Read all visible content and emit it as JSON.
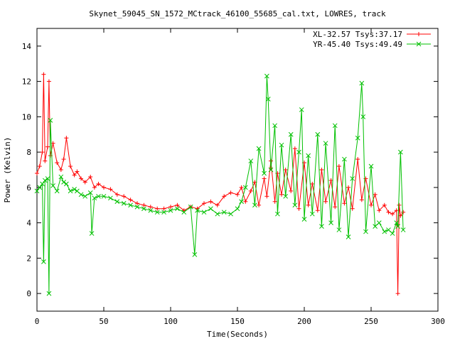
{
  "chart_data": {
    "type": "line",
    "title": "Skynet_59045_SN_1572_MCtrack_46100_55685_cal.txt, LOWRES, track",
    "xlabel": "Time(Seconds)",
    "ylabel": "Power (Kelvin)",
    "xlim": [
      0,
      300
    ],
    "ylim": [
      -1,
      15
    ],
    "xticks": [
      0,
      50,
      100,
      150,
      200,
      250,
      300
    ],
    "yticks": [
      0,
      2,
      4,
      6,
      8,
      10,
      12,
      14
    ],
    "grid": false,
    "legend_position": "top-right",
    "series": [
      {
        "name": "XL-32.57 Tsys:37.17",
        "color": "#ff0000",
        "marker": "plus",
        "x": [
          0,
          2,
          4,
          5,
          6,
          8,
          9,
          10,
          12,
          15,
          18,
          20,
          22,
          25,
          28,
          30,
          33,
          36,
          40,
          43,
          46,
          50,
          55,
          60,
          65,
          70,
          75,
          80,
          85,
          90,
          95,
          100,
          105,
          110,
          115,
          120,
          125,
          130,
          135,
          140,
          145,
          150,
          153,
          156,
          160,
          163,
          166,
          170,
          172,
          175,
          178,
          180,
          183,
          186,
          190,
          193,
          196,
          200,
          203,
          206,
          210,
          213,
          216,
          220,
          223,
          226,
          230,
          233,
          236,
          240,
          243,
          246,
          250,
          253,
          256,
          260,
          263,
          266,
          269,
          270,
          271,
          272,
          274
        ],
        "y": [
          6.8,
          7.2,
          8.0,
          12.4,
          7.5,
          8.3,
          12.0,
          7.8,
          8.5,
          7.4,
          7.0,
          7.6,
          8.8,
          7.2,
          6.7,
          6.9,
          6.5,
          6.3,
          6.6,
          6.0,
          6.2,
          6.0,
          5.9,
          5.6,
          5.5,
          5.3,
          5.1,
          5.0,
          4.9,
          4.8,
          4.8,
          4.9,
          5.0,
          4.7,
          4.9,
          4.8,
          5.1,
          5.2,
          5.0,
          5.5,
          5.7,
          5.6,
          6.0,
          5.2,
          5.8,
          6.3,
          5.0,
          6.5,
          5.5,
          7.5,
          5.2,
          6.8,
          5.6,
          7.0,
          5.8,
          8.2,
          4.8,
          7.4,
          5.0,
          6.2,
          4.7,
          7.0,
          5.2,
          6.4,
          4.9,
          7.2,
          5.1,
          6.0,
          4.8,
          7.6,
          5.3,
          6.5,
          5.0,
          5.6,
          4.7,
          5.0,
          4.6,
          4.5,
          4.7,
          0.0,
          5.0,
          4.4,
          4.6
        ]
      },
      {
        "name": "YR-45.40 Tsys:49.49",
        "color": "#00c000",
        "marker": "cross",
        "x": [
          0,
          2,
          4,
          5,
          6,
          8,
          9,
          10,
          12,
          15,
          18,
          20,
          22,
          25,
          28,
          30,
          33,
          36,
          40,
          41,
          43,
          46,
          50,
          55,
          60,
          65,
          70,
          75,
          80,
          85,
          90,
          95,
          100,
          105,
          110,
          115,
          118,
          120,
          125,
          130,
          135,
          140,
          145,
          150,
          153,
          156,
          160,
          163,
          166,
          170,
          172,
          173,
          175,
          178,
          180,
          183,
          186,
          190,
          193,
          196,
          198,
          200,
          203,
          206,
          210,
          213,
          216,
          220,
          223,
          226,
          230,
          233,
          236,
          240,
          243,
          244,
          246,
          250,
          253,
          256,
          260,
          263,
          266,
          269,
          270,
          272,
          274
        ],
        "y": [
          5.8,
          6.0,
          6.2,
          1.8,
          6.4,
          6.5,
          0.0,
          9.8,
          6.1,
          5.8,
          6.6,
          6.3,
          6.2,
          5.8,
          5.9,
          5.8,
          5.6,
          5.5,
          5.7,
          3.4,
          5.4,
          5.5,
          5.5,
          5.4,
          5.2,
          5.1,
          5.0,
          4.9,
          4.8,
          4.7,
          4.6,
          4.6,
          4.7,
          4.8,
          4.6,
          4.9,
          2.2,
          4.7,
          4.6,
          4.8,
          4.5,
          4.6,
          4.5,
          4.8,
          5.2,
          6.0,
          7.5,
          5.0,
          8.2,
          6.8,
          12.3,
          11.0,
          7.0,
          9.5,
          4.5,
          8.4,
          5.5,
          9.0,
          5.0,
          8.0,
          10.4,
          4.2,
          7.8,
          4.5,
          9.0,
          3.8,
          8.5,
          4.0,
          9.5,
          3.6,
          7.6,
          3.2,
          6.5,
          8.8,
          11.9,
          10.0,
          3.5,
          7.2,
          3.8,
          4.0,
          3.5,
          3.6,
          3.4,
          4.0,
          3.8,
          8.0,
          3.6
        ]
      }
    ]
  }
}
